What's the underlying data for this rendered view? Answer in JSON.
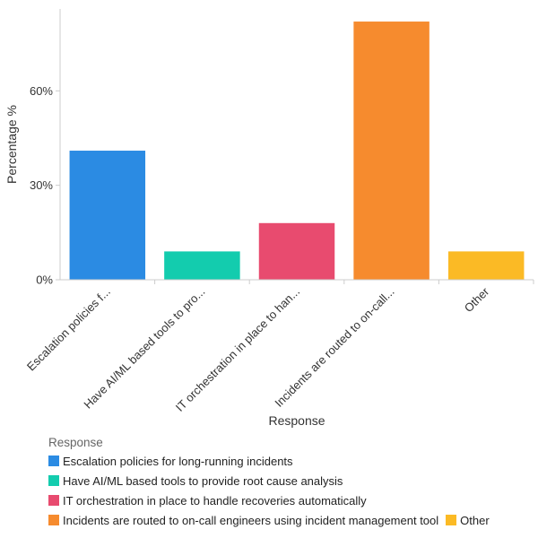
{
  "chart_data": {
    "type": "bar",
    "title": "",
    "xlabel": "Response",
    "ylabel": "Percentage %",
    "ylim": [
      0,
      86
    ],
    "yticks": [
      0,
      30,
      60
    ],
    "ytick_labels": [
      "0%",
      "30%",
      "60%"
    ],
    "categories": [
      "Escalation policies for long-running incidents",
      "Have AI/ML based tools to provide root cause analysis",
      "IT orchestration in place to handle recoveries automatically",
      "Incidents are routed to on-call engineers using incident management tool",
      "Other"
    ],
    "tick_labels": [
      "Escalation policies f...",
      "Have AI/ML based tools to pro...",
      "IT orchestration in place to han...",
      "Incidents are routed to on-call...",
      "Other"
    ],
    "values": [
      41,
      9,
      18,
      82,
      9
    ],
    "colors": [
      "#2B8BE3",
      "#13CCAE",
      "#E84B6F",
      "#F68B2E",
      "#FBBA25"
    ],
    "legend_title": "Response",
    "legend_position": "bottom-left"
  }
}
